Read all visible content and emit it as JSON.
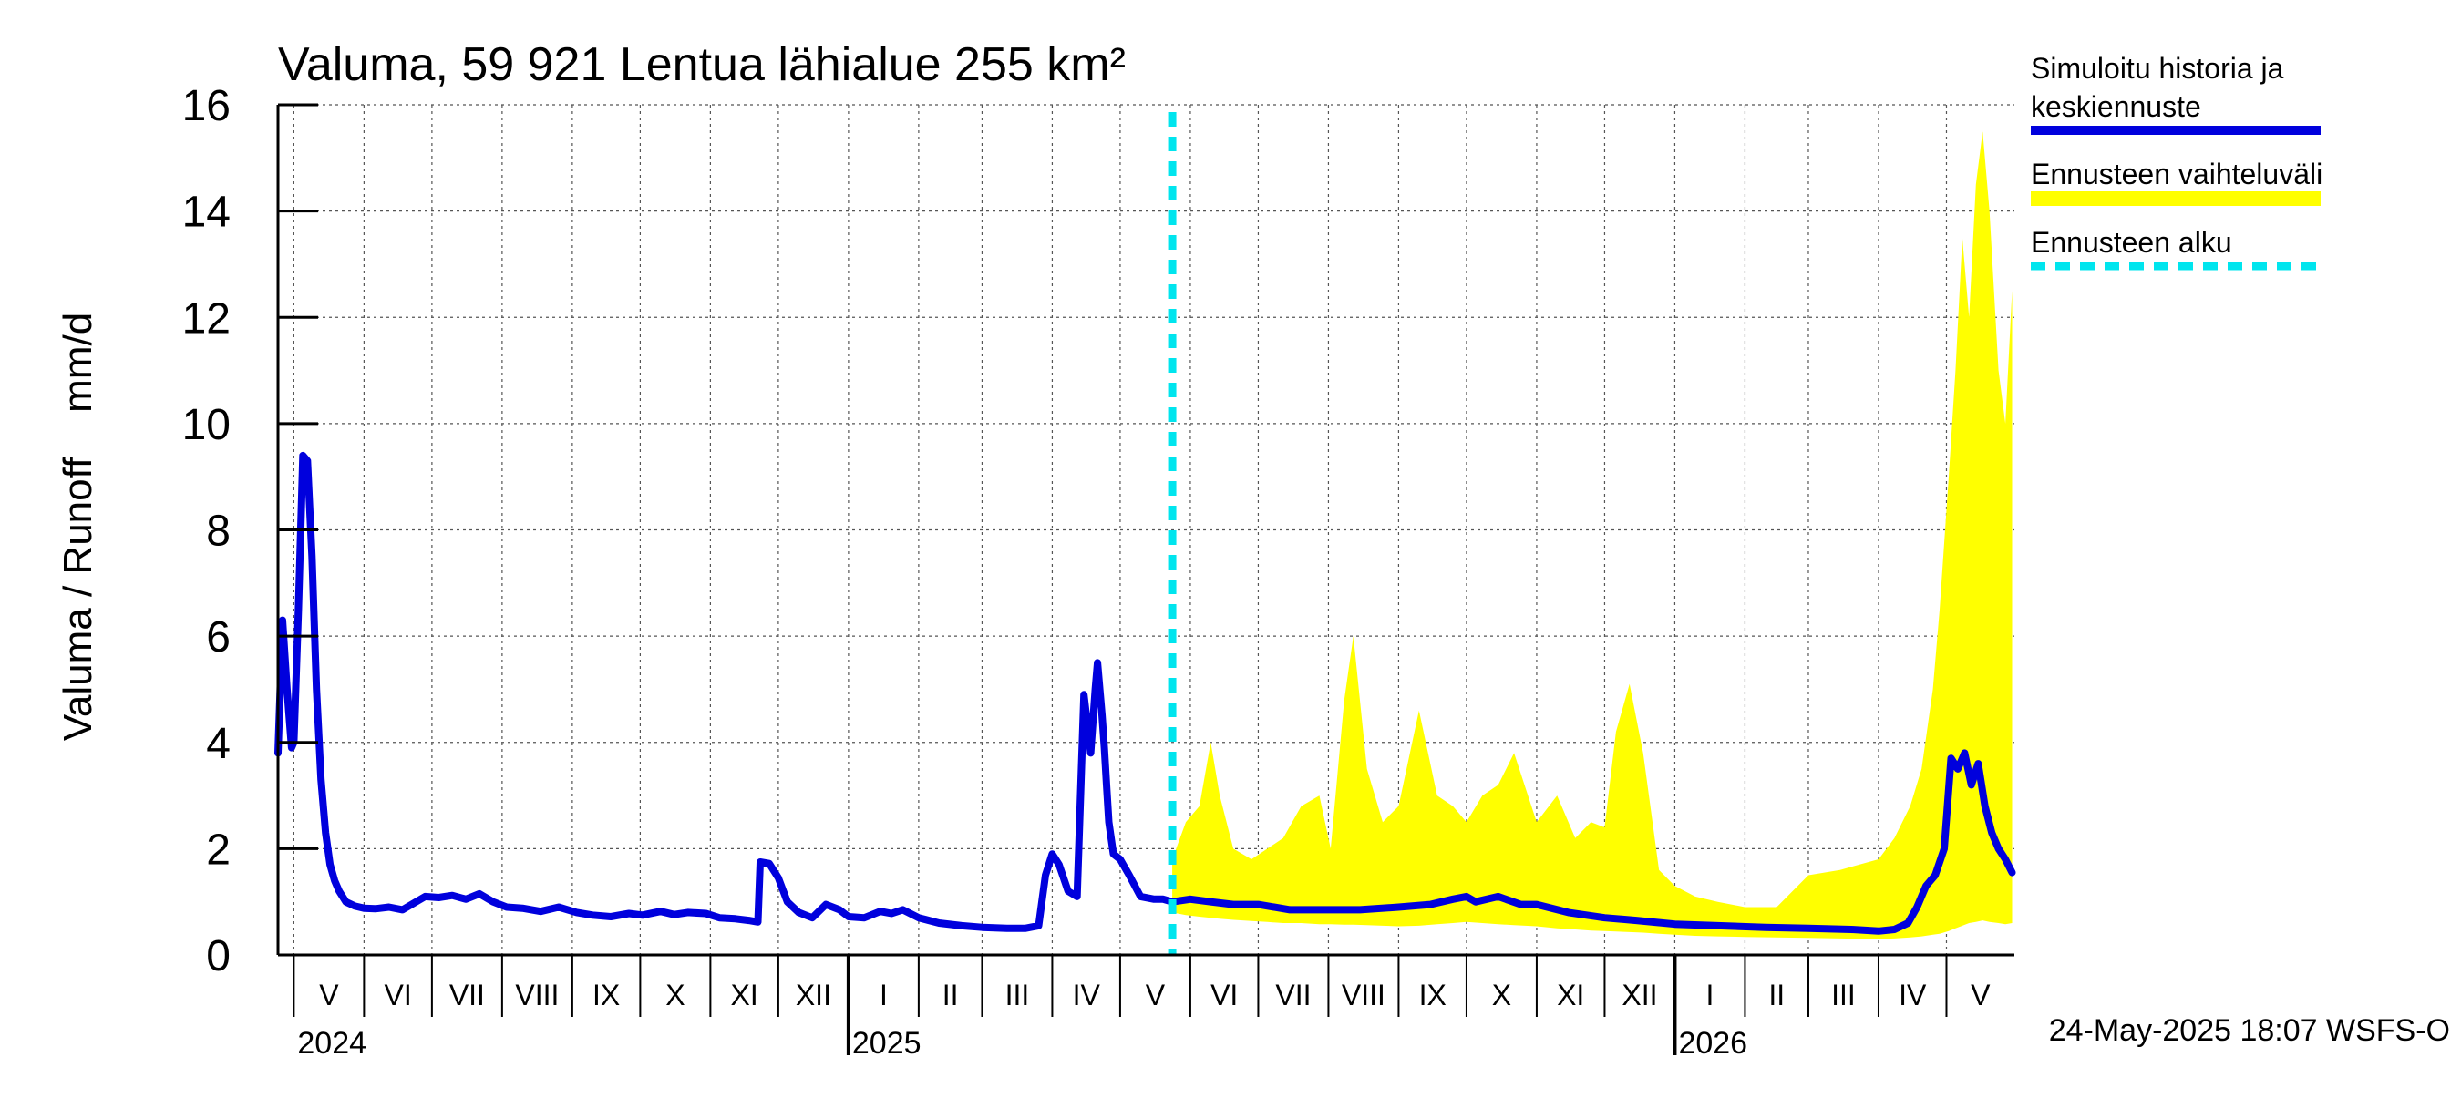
{
  "chart_data": {
    "type": "area",
    "title": "Valuma, 59 921 Lentua lähialue 255 km²",
    "ylabel": "Valuma / Runoff    mm/d",
    "xlabel": "",
    "ylim": [
      0,
      16
    ],
    "xlim": [
      "2024-04-24",
      "2026-05-31"
    ],
    "yticks": [
      0,
      2,
      4,
      6,
      8,
      10,
      12,
      14,
      16
    ],
    "grid": true,
    "legend_position": "right",
    "forecast_start": "2025-05-24",
    "month_labels": [
      {
        "label": "V",
        "date": "2024-05-01"
      },
      {
        "label": "VI",
        "date": "2024-06-01"
      },
      {
        "label": "VII",
        "date": "2024-07-01"
      },
      {
        "label": "VIII",
        "date": "2024-08-01"
      },
      {
        "label": "IX",
        "date": "2024-09-01"
      },
      {
        "label": "X",
        "date": "2024-10-01"
      },
      {
        "label": "XI",
        "date": "2024-11-01"
      },
      {
        "label": "XII",
        "date": "2024-12-01"
      },
      {
        "label": "I",
        "date": "2025-01-01"
      },
      {
        "label": "II",
        "date": "2025-02-01"
      },
      {
        "label": "III",
        "date": "2025-03-01"
      },
      {
        "label": "IV",
        "date": "2025-04-01"
      },
      {
        "label": "V",
        "date": "2025-05-01"
      },
      {
        "label": "VI",
        "date": "2025-06-01"
      },
      {
        "label": "VII",
        "date": "2025-07-01"
      },
      {
        "label": "VIII",
        "date": "2025-08-01"
      },
      {
        "label": "IX",
        "date": "2025-09-01"
      },
      {
        "label": "X",
        "date": "2025-10-01"
      },
      {
        "label": "XI",
        "date": "2025-11-01"
      },
      {
        "label": "XII",
        "date": "2025-12-01"
      },
      {
        "label": "I",
        "date": "2026-01-01"
      },
      {
        "label": "II",
        "date": "2026-02-01"
      },
      {
        "label": "III",
        "date": "2026-03-01"
      },
      {
        "label": "IV",
        "date": "2026-04-01"
      },
      {
        "label": "V",
        "date": "2026-05-01"
      }
    ],
    "year_labels": [
      {
        "label": "2024",
        "date": "2024-05-01"
      },
      {
        "label": "2025",
        "date": "2025-01-01"
      },
      {
        "label": "2026",
        "date": "2026-01-01"
      }
    ],
    "series": [
      {
        "name": "Simuloitu historia ja keskiennuste",
        "color": "#0000dd",
        "x": [
          "2024-04-24",
          "2024-04-26",
          "2024-04-28",
          "2024-04-30",
          "2024-05-01",
          "2024-05-03",
          "2024-05-05",
          "2024-05-07",
          "2024-05-09",
          "2024-05-11",
          "2024-05-13",
          "2024-05-15",
          "2024-05-17",
          "2024-05-19",
          "2024-05-21",
          "2024-05-24",
          "2024-05-28",
          "2024-06-01",
          "2024-06-06",
          "2024-06-12",
          "2024-06-18",
          "2024-06-24",
          "2024-06-28",
          "2024-07-04",
          "2024-07-10",
          "2024-07-16",
          "2024-07-22",
          "2024-07-28",
          "2024-08-03",
          "2024-08-10",
          "2024-08-18",
          "2024-08-26",
          "2024-09-03",
          "2024-09-10",
          "2024-09-18",
          "2024-09-26",
          "2024-10-02",
          "2024-10-10",
          "2024-10-16",
          "2024-10-22",
          "2024-10-30",
          "2024-11-05",
          "2024-11-12",
          "2024-11-18",
          "2024-11-22",
          "2024-11-23",
          "2024-11-27",
          "2024-12-01",
          "2024-12-05",
          "2024-12-10",
          "2024-12-16",
          "2024-12-22",
          "2024-12-28",
          "2025-01-01",
          "2025-01-08",
          "2025-01-15",
          "2025-01-20",
          "2025-01-25",
          "2025-02-01",
          "2025-02-10",
          "2025-02-20",
          "2025-03-01",
          "2025-03-12",
          "2025-03-20",
          "2025-03-26",
          "2025-03-29",
          "2025-04-01",
          "2025-04-04",
          "2025-04-08",
          "2025-04-12",
          "2025-04-15",
          "2025-04-18",
          "2025-04-20",
          "2025-04-21",
          "2025-04-23",
          "2025-04-24",
          "2025-04-25",
          "2025-04-26",
          "2025-04-28",
          "2025-05-01",
          "2025-05-05",
          "2025-05-10",
          "2025-05-16",
          "2025-05-20",
          "2025-05-24",
          "2025-06-01",
          "2025-06-10",
          "2025-06-20",
          "2025-07-01",
          "2025-07-15",
          "2025-08-01",
          "2025-08-15",
          "2025-09-01",
          "2025-09-15",
          "2025-09-25",
          "2025-10-01",
          "2025-10-05",
          "2025-10-15",
          "2025-10-25",
          "2025-11-01",
          "2025-11-15",
          "2025-12-01",
          "2025-12-15",
          "2026-01-01",
          "2026-01-20",
          "2026-02-10",
          "2026-03-01",
          "2026-03-20",
          "2026-04-01",
          "2026-04-08",
          "2026-04-14",
          "2026-04-18",
          "2026-04-22",
          "2026-04-26",
          "2026-04-30",
          "2026-05-03",
          "2026-05-06",
          "2026-05-09",
          "2026-05-12",
          "2026-05-15",
          "2026-05-18",
          "2026-05-21",
          "2026-05-24",
          "2026-05-27",
          "2026-05-30"
        ],
        "values": [
          3.8,
          6.3,
          5.0,
          3.9,
          4.0,
          6.5,
          9.4,
          9.3,
          7.5,
          5.0,
          3.3,
          2.3,
          1.7,
          1.4,
          1.2,
          1.0,
          0.92,
          0.88,
          0.87,
          0.9,
          0.85,
          1.0,
          1.1,
          1.08,
          1.12,
          1.05,
          1.15,
          1.0,
          0.9,
          0.88,
          0.82,
          0.9,
          0.8,
          0.75,
          0.72,
          0.78,
          0.75,
          0.82,
          0.76,
          0.8,
          0.78,
          0.7,
          0.68,
          0.65,
          0.62,
          1.75,
          1.72,
          1.45,
          1.0,
          0.8,
          0.7,
          0.95,
          0.85,
          0.72,
          0.7,
          0.82,
          0.78,
          0.85,
          0.7,
          0.6,
          0.55,
          0.52,
          0.5,
          0.5,
          0.55,
          1.5,
          1.9,
          1.7,
          1.2,
          1.1,
          4.9,
          3.8,
          5.0,
          5.5,
          4.5,
          3.9,
          3.2,
          2.5,
          1.9,
          1.8,
          1.5,
          1.1,
          1.05,
          1.05,
          1.0,
          1.05,
          1.0,
          0.95,
          0.95,
          0.85,
          0.85,
          0.85,
          0.9,
          0.95,
          1.05,
          1.1,
          1.0,
          1.1,
          0.95,
          0.95,
          0.8,
          0.7,
          0.65,
          0.58,
          0.55,
          0.52,
          0.5,
          0.48,
          0.45,
          0.48,
          0.6,
          0.9,
          1.3,
          1.5,
          2.0,
          3.7,
          3.5,
          3.8,
          3.2,
          3.6,
          2.8,
          2.3,
          2.0,
          1.8,
          1.55
        ]
      },
      {
        "name": "Ennusteen vaihteluväli",
        "color": "#ffff00",
        "x": [
          "2025-05-24",
          "2025-05-30",
          "2025-06-05",
          "2025-06-10",
          "2025-06-14",
          "2025-06-20",
          "2025-06-28",
          "2025-07-05",
          "2025-07-12",
          "2025-07-20",
          "2025-07-28",
          "2025-08-02",
          "2025-08-08",
          "2025-08-12",
          "2025-08-18",
          "2025-08-25",
          "2025-09-01",
          "2025-09-10",
          "2025-09-18",
          "2025-09-25",
          "2025-10-01",
          "2025-10-08",
          "2025-10-15",
          "2025-10-22",
          "2025-11-01",
          "2025-11-10",
          "2025-11-18",
          "2025-11-25",
          "2025-12-01",
          "2025-12-06",
          "2025-12-12",
          "2025-12-18",
          "2025-12-25",
          "2026-01-01",
          "2026-01-10",
          "2026-01-20",
          "2026-02-01",
          "2026-02-15",
          "2026-03-01",
          "2026-03-15",
          "2026-04-01",
          "2026-04-08",
          "2026-04-15",
          "2026-04-20",
          "2026-04-25",
          "2026-04-28",
          "2026-05-02",
          "2026-05-05",
          "2026-05-08",
          "2026-05-11",
          "2026-05-14",
          "2026-05-17",
          "2026-05-20",
          "2026-05-24",
          "2026-05-27",
          "2026-05-30"
        ],
        "upper": [
          1.8,
          2.5,
          2.8,
          4.0,
          3.0,
          2.0,
          1.8,
          2.0,
          2.2,
          2.8,
          3.0,
          2.0,
          4.8,
          6.0,
          3.5,
          2.5,
          2.8,
          4.6,
          3.0,
          2.8,
          2.5,
          3.0,
          3.2,
          3.8,
          2.5,
          3.0,
          2.2,
          2.5,
          2.4,
          4.2,
          5.1,
          3.8,
          1.6,
          1.3,
          1.1,
          1.0,
          0.9,
          0.9,
          1.5,
          1.6,
          1.8,
          2.2,
          2.8,
          3.5,
          5.0,
          6.5,
          9.0,
          11.0,
          13.5,
          12.0,
          14.5,
          15.5,
          14.0,
          11.0,
          10.0,
          12.5
        ],
        "lower": [
          0.8,
          0.75,
          0.72,
          0.7,
          0.68,
          0.66,
          0.64,
          0.62,
          0.6,
          0.6,
          0.58,
          0.58,
          0.57,
          0.57,
          0.56,
          0.55,
          0.54,
          0.55,
          0.58,
          0.6,
          0.62,
          0.6,
          0.58,
          0.56,
          0.54,
          0.5,
          0.48,
          0.46,
          0.45,
          0.44,
          0.43,
          0.42,
          0.4,
          0.38,
          0.36,
          0.35,
          0.34,
          0.33,
          0.32,
          0.31,
          0.3,
          0.31,
          0.33,
          0.35,
          0.38,
          0.4,
          0.45,
          0.5,
          0.55,
          0.6,
          0.62,
          0.65,
          0.62,
          0.6,
          0.58,
          0.6
        ]
      },
      {
        "name": "Ennusteen alku",
        "color": "#00e5ee"
      }
    ]
  },
  "timestamp": "24-May-2025 18:07 WSFS-O"
}
